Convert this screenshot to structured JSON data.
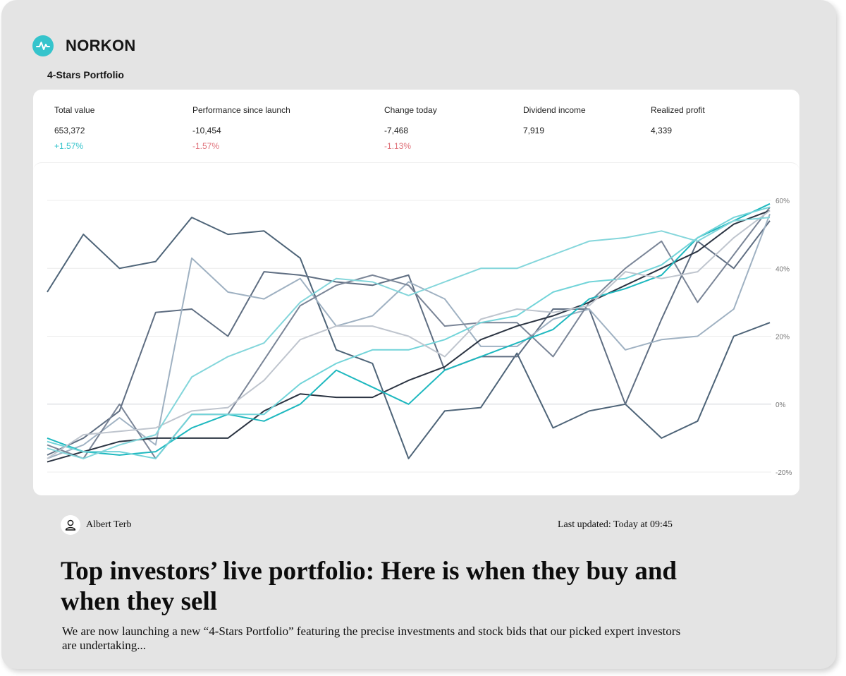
{
  "brand": {
    "name": "NORKON"
  },
  "portfolio": {
    "title": "4-Stars Portfolio"
  },
  "stats": [
    {
      "label": "Total value",
      "value": "653,372",
      "change": "+1.57%",
      "trend": "up"
    },
    {
      "label": "Performance since launch",
      "value": "-10,454",
      "change": "-1.57%",
      "trend": "down"
    },
    {
      "label": "Change today",
      "value": "-7,468",
      "change": "-1.13%",
      "trend": "down"
    },
    {
      "label": "Dividend income",
      "value": "7,919"
    },
    {
      "label": "Realized profit",
      "value": "4,339"
    }
  ],
  "article": {
    "author": "Albert Terb",
    "updated": "Last updated: Today at 09:45",
    "headline": "Top investors’ live portfolio: Here is when they buy and when they sell",
    "lede": "We are now launching a new “4-Stars Portfolio” featuring the precise investments and stock bids  that our picked expert investors are undertaking..."
  },
  "icons": {
    "logo": "pulse-icon",
    "avatar": "user-icon"
  },
  "colors": {
    "accent": "#35c4cc",
    "negative": "#e0737b",
    "panel": "#e4e4e4"
  },
  "chart_data": {
    "type": "line",
    "y_tick_labels": [
      "60%",
      "40%",
      "20%",
      "0%",
      "-20%"
    ],
    "y_ticks": [
      60,
      40,
      20,
      0,
      -20
    ],
    "ylim": [
      -20,
      60
    ],
    "x": [
      0,
      5,
      10,
      15,
      20,
      25,
      30,
      35,
      40,
      45,
      50,
      55,
      60,
      65,
      70,
      75,
      80,
      85,
      90,
      95,
      100
    ],
    "grid": true,
    "legend": "none",
    "series": [
      {
        "color": "#4e6478",
        "values": [
          33,
          50,
          40,
          42,
          55,
          50,
          51,
          43,
          16,
          12,
          -16,
          -2,
          -1,
          15,
          -7,
          -2,
          0,
          -10,
          -5,
          20,
          24
        ]
      },
      {
        "color": "#5f6e82",
        "values": [
          -15,
          -10,
          -2,
          27,
          28,
          20,
          39,
          38,
          36,
          35,
          38,
          10,
          14,
          14,
          28,
          28,
          0,
          25,
          48,
          40,
          54
        ]
      },
      {
        "color": "#9fb1c2",
        "values": [
          -16,
          -12,
          -4,
          -12,
          43,
          33,
          31,
          37,
          23,
          26,
          36,
          31,
          17,
          17,
          25,
          28,
          16,
          19,
          20,
          28,
          56
        ]
      },
      {
        "color": "#7a8597",
        "values": [
          -12,
          -16,
          0,
          -16,
          -3,
          -3,
          13,
          29,
          35,
          38,
          35,
          23,
          24,
          24,
          14,
          30,
          40,
          48,
          30,
          44,
          58
        ]
      },
      {
        "color": "#2b3442",
        "values": [
          -17,
          -14,
          -11,
          -10,
          -10,
          -10,
          -2,
          3,
          2,
          2,
          7,
          11,
          19,
          23,
          26,
          30,
          35,
          40,
          45,
          53,
          57
        ]
      },
      {
        "color": "#1eb8bf",
        "values": [
          -10,
          -14,
          -15,
          -14,
          -7,
          -3,
          -5,
          0,
          10,
          5,
          0,
          10,
          14,
          18,
          22,
          31,
          34,
          38,
          49,
          54,
          59
        ]
      },
      {
        "color": "#72d4d9",
        "values": [
          -11,
          -14,
          -14,
          -16,
          -3,
          -3,
          -3,
          6,
          12,
          16,
          16,
          19,
          24,
          26,
          33,
          36,
          37,
          41,
          49,
          55,
          58
        ]
      },
      {
        "color": "#bfc5ce",
        "values": [
          -16,
          -9,
          -8,
          -7,
          -2,
          -1,
          7,
          19,
          23,
          23,
          20,
          14,
          25,
          28,
          27,
          29,
          39,
          37,
          39,
          49,
          57
        ]
      },
      {
        "color": "#84d6db",
        "values": [
          -13,
          -16,
          -12,
          -9,
          8,
          14,
          18,
          30,
          37,
          36,
          32,
          36,
          40,
          40,
          44,
          48,
          49,
          51,
          48,
          54,
          55
        ]
      }
    ]
  }
}
